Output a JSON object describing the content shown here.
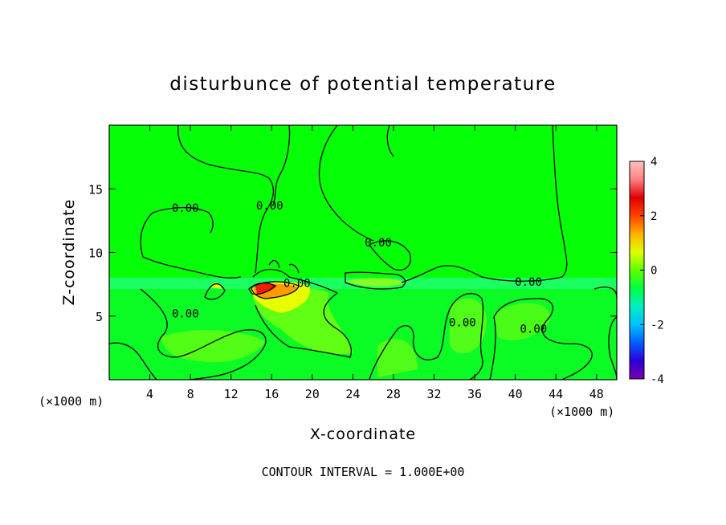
{
  "figure": {
    "title": "disturbunce of potential temperature",
    "footer": "CONTOUR INTERVAL = 1.000E+00"
  },
  "chart_data": {
    "type": "heatmap",
    "title": "disturbunce of potential temperature",
    "xlabel": "X-coordinate",
    "ylabel": "Z-coordinate",
    "x_unit_left": "(×1000 m)",
    "x_unit_right": "(×1000 m)",
    "xlim": [
      0,
      50
    ],
    "ylim": [
      0,
      20
    ],
    "x_ticks": [
      4,
      8,
      12,
      16,
      20,
      24,
      28,
      32,
      36,
      40,
      44,
      48
    ],
    "y_ticks": [
      5,
      10,
      15
    ],
    "colorbar": {
      "range": [
        -4,
        4
      ],
      "ticks": [
        -4,
        -2,
        0,
        2,
        4
      ],
      "colors": [
        "#7a00b0",
        "#2a00d8",
        "#0060ff",
        "#00c0ff",
        "#00f0c0",
        "#00ff40",
        "#60ff00",
        "#e0ff00",
        "#ffb000",
        "#ff4000",
        "#e00000",
        "#ff8080",
        "#ffc0c0"
      ]
    },
    "background_color": "#06ff06",
    "contour_interval": 1.0,
    "contour_labels": [
      {
        "text": "0.00",
        "x": 7.5,
        "z": 13.5
      },
      {
        "text": "0.00",
        "x": 15.8,
        "z": 13.7
      },
      {
        "text": "0.00",
        "x": 26.5,
        "z": 10.8
      },
      {
        "text": "0.00",
        "x": 18.5,
        "z": 7.6
      },
      {
        "text": "0.00",
        "x": 41.3,
        "z": 7.7
      },
      {
        "text": "0.00",
        "x": 7.5,
        "z": 5.2
      },
      {
        "text": "0.00",
        "x": 34.8,
        "z": 4.5
      },
      {
        "text": "0.00",
        "x": 41.8,
        "z": 4.0
      }
    ]
  }
}
